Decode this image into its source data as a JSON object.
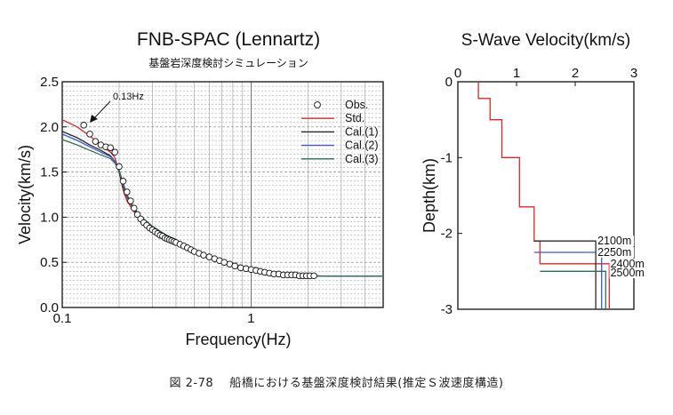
{
  "chart_data": [
    {
      "type": "scatter",
      "title": "FNB-SPAC (Lennartz)",
      "subtitle": "基盤岩深度検討シミュレーション",
      "xlabel": "Frequency(Hz)",
      "ylabel": "Velocity(km/s)",
      "xscale": "log",
      "xlim": [
        0.1,
        5
      ],
      "ylim": [
        0.0,
        2.5
      ],
      "x_tick_labels": [
        "0.1",
        "1"
      ],
      "y_tick_labels": [
        "0.0",
        "0.5",
        "1.0",
        "1.5",
        "2.0",
        "2.5"
      ],
      "grid": true,
      "legend_position": "top-right",
      "annotation": "0.13Hz",
      "annotation_point": [
        0.13,
        2.02
      ],
      "observed": {
        "name": "Obs.",
        "x": [
          0.13,
          0.14,
          0.15,
          0.16,
          0.17,
          0.18,
          0.19,
          0.2,
          0.21,
          0.22,
          0.23,
          0.24,
          0.25,
          0.26,
          0.27,
          0.28,
          0.29,
          0.3,
          0.31,
          0.32,
          0.33,
          0.34,
          0.35,
          0.36,
          0.37,
          0.38,
          0.39,
          0.4,
          0.42,
          0.44,
          0.46,
          0.48,
          0.5,
          0.53,
          0.56,
          0.6,
          0.64,
          0.68,
          0.72,
          0.77,
          0.82,
          0.88,
          0.94,
          1.0,
          1.06,
          1.12,
          1.18,
          1.25,
          1.32,
          1.4,
          1.48,
          1.56,
          1.64,
          1.72,
          1.8,
          1.88,
          1.96,
          2.05,
          2.15
        ],
        "y": [
          2.02,
          1.92,
          1.84,
          1.8,
          1.78,
          1.77,
          1.72,
          1.56,
          1.4,
          1.28,
          1.18,
          1.1,
          1.03,
          0.98,
          0.94,
          0.91,
          0.88,
          0.86,
          0.84,
          0.82,
          0.8,
          0.79,
          0.77,
          0.76,
          0.75,
          0.74,
          0.73,
          0.72,
          0.7,
          0.68,
          0.66,
          0.64,
          0.62,
          0.6,
          0.58,
          0.56,
          0.54,
          0.52,
          0.5,
          0.48,
          0.46,
          0.44,
          0.43,
          0.42,
          0.41,
          0.4,
          0.39,
          0.38,
          0.37,
          0.37,
          0.36,
          0.36,
          0.36,
          0.36,
          0.35,
          0.35,
          0.35,
          0.35,
          0.35
        ]
      },
      "series": [
        {
          "name": "Std.",
          "color": "#e0262a",
          "x": [
            0.1,
            0.12,
            0.14,
            0.16,
            0.18,
            0.19,
            0.2,
            0.21,
            0.22,
            0.24,
            0.26,
            0.3,
            0.35,
            0.4,
            0.5,
            0.6,
            0.7,
            0.8,
            1.0,
            1.2,
            1.5,
            2.0,
            3.0,
            5.0
          ],
          "y": [
            2.08,
            2.0,
            1.9,
            1.8,
            1.72,
            1.66,
            1.5,
            1.3,
            1.18,
            1.06,
            0.98,
            0.88,
            0.8,
            0.74,
            0.64,
            0.56,
            0.5,
            0.46,
            0.41,
            0.38,
            0.36,
            0.35,
            0.345,
            0.345
          ]
        },
        {
          "name": "Cal.(1)",
          "color": "#2a2a2a",
          "x": [
            0.1,
            0.12,
            0.14,
            0.16,
            0.18,
            0.19,
            0.2,
            0.21,
            0.22,
            0.24,
            0.26,
            0.3,
            0.35,
            0.4,
            0.5,
            0.6,
            0.7,
            0.8,
            1.0,
            1.2,
            1.5,
            2.0,
            3.0,
            5.0
          ],
          "y": [
            1.95,
            1.88,
            1.8,
            1.74,
            1.68,
            1.62,
            1.5,
            1.34,
            1.22,
            1.08,
            1.0,
            0.89,
            0.81,
            0.74,
            0.64,
            0.56,
            0.5,
            0.46,
            0.41,
            0.38,
            0.36,
            0.35,
            0.345,
            0.345
          ]
        },
        {
          "name": "Cal.(2)",
          "color": "#3a5bd0",
          "x": [
            0.1,
            0.12,
            0.14,
            0.16,
            0.18,
            0.19,
            0.2,
            0.21,
            0.22,
            0.24,
            0.26,
            0.3,
            0.35,
            0.4,
            0.5,
            0.6,
            0.7,
            0.8,
            1.0,
            1.2,
            1.5,
            2.0,
            3.0,
            5.0
          ],
          "y": [
            1.92,
            1.85,
            1.78,
            1.72,
            1.67,
            1.62,
            1.52,
            1.36,
            1.23,
            1.09,
            1.0,
            0.89,
            0.81,
            0.74,
            0.64,
            0.56,
            0.5,
            0.46,
            0.41,
            0.38,
            0.36,
            0.35,
            0.345,
            0.345
          ]
        },
        {
          "name": "Cal.(3)",
          "color": "#2e6e5a",
          "x": [
            0.1,
            0.12,
            0.14,
            0.16,
            0.18,
            0.19,
            0.2,
            0.21,
            0.22,
            0.24,
            0.26,
            0.3,
            0.35,
            0.4,
            0.5,
            0.6,
            0.7,
            0.8,
            1.0,
            1.2,
            1.5,
            2.0,
            3.0,
            5.0
          ],
          "y": [
            1.86,
            1.8,
            1.74,
            1.69,
            1.65,
            1.6,
            1.52,
            1.38,
            1.25,
            1.1,
            1.01,
            0.9,
            0.81,
            0.74,
            0.64,
            0.56,
            0.5,
            0.46,
            0.41,
            0.38,
            0.36,
            0.35,
            0.345,
            0.345
          ]
        }
      ]
    },
    {
      "type": "line",
      "title": "S-Wave Velocity(km/s)",
      "xlabel": "S-Wave Velocity(km/s)",
      "ylabel": "Depth(km)",
      "xlim": [
        0,
        3
      ],
      "ylim": [
        -3,
        0
      ],
      "x_tick_labels": [
        "0",
        "1",
        "2",
        "3"
      ],
      "y_tick_labels": [
        "0",
        "-1",
        "-2",
        "-3"
      ],
      "grid": false,
      "series": [
        {
          "name": "Std.",
          "color": "#e0262a",
          "v": [
            0.35,
            0.35,
            0.55,
            0.55,
            0.75,
            0.75,
            1.05,
            1.05,
            1.3,
            1.3,
            1.4,
            1.4,
            2.58,
            2.58
          ],
          "depth": [
            0.0,
            -0.22,
            -0.22,
            -0.5,
            -0.5,
            -1.0,
            -1.0,
            -1.65,
            -1.65,
            -2.1,
            -2.1,
            -2.4,
            -2.4,
            -3.0
          ]
        },
        {
          "name": "Cal.(1)",
          "color": "#2a2a2a",
          "v": [
            1.3,
            2.35,
            2.35
          ],
          "depth": [
            -2.1,
            -2.1,
            -3.0
          ]
        },
        {
          "name": "Cal.(2)",
          "color": "#3a5bd0",
          "v": [
            1.3,
            2.45,
            2.45
          ],
          "depth": [
            -2.25,
            -2.25,
            -3.0
          ]
        },
        {
          "name": "Cal.(3)",
          "color": "#2e6e5a",
          "v": [
            1.4,
            2.52,
            2.52
          ],
          "depth": [
            -2.5,
            -2.5,
            -3.0
          ]
        }
      ],
      "depth_labels": [
        "2100m",
        "2250m",
        "2400m",
        "2500m"
      ]
    }
  ],
  "caption": "図 2-78　 船橋における基盤深度検討結果(推定Ｓ波速度構造)"
}
